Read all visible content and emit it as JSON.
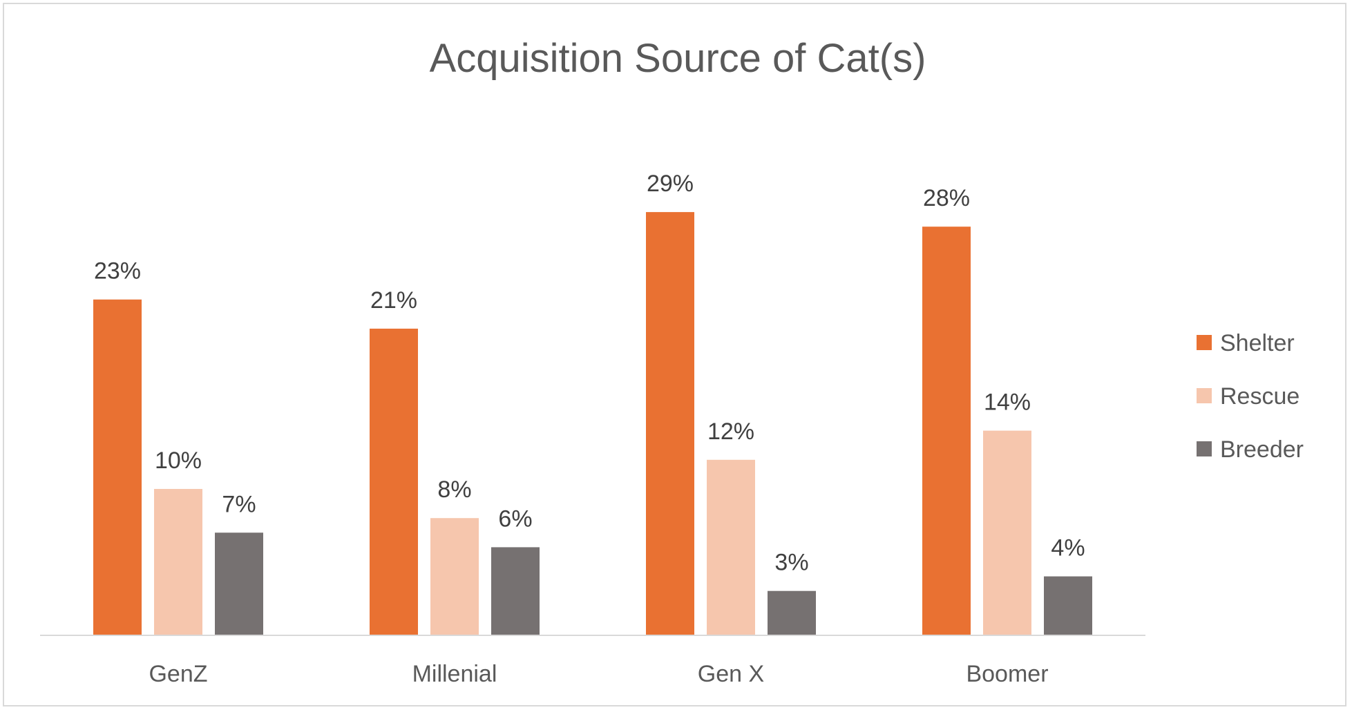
{
  "chart_data": {
    "type": "bar",
    "title": "Acquisition Source of Cat(s)",
    "xlabel": "",
    "ylabel": "",
    "categories": [
      "GenZ",
      "Millenial",
      "Gen X",
      "Boomer"
    ],
    "series": [
      {
        "name": "Shelter",
        "color": "#e97132",
        "values": [
          23,
          21,
          29,
          28
        ],
        "labels": [
          "23%",
          "21%",
          "29%",
          "28%"
        ]
      },
      {
        "name": "Rescue",
        "color": "#f6c6ad",
        "values": [
          10,
          8,
          12,
          14
        ],
        "labels": [
          "10%",
          "8%",
          "12%",
          "14%"
        ]
      },
      {
        "name": "Breeder",
        "color": "#767171",
        "values": [
          7,
          6,
          3,
          4
        ],
        "labels": [
          "7%",
          "6%",
          "3%",
          "4%"
        ]
      }
    ],
    "ylim": [
      0,
      35
    ],
    "grid": false,
    "legend_position": "right"
  }
}
